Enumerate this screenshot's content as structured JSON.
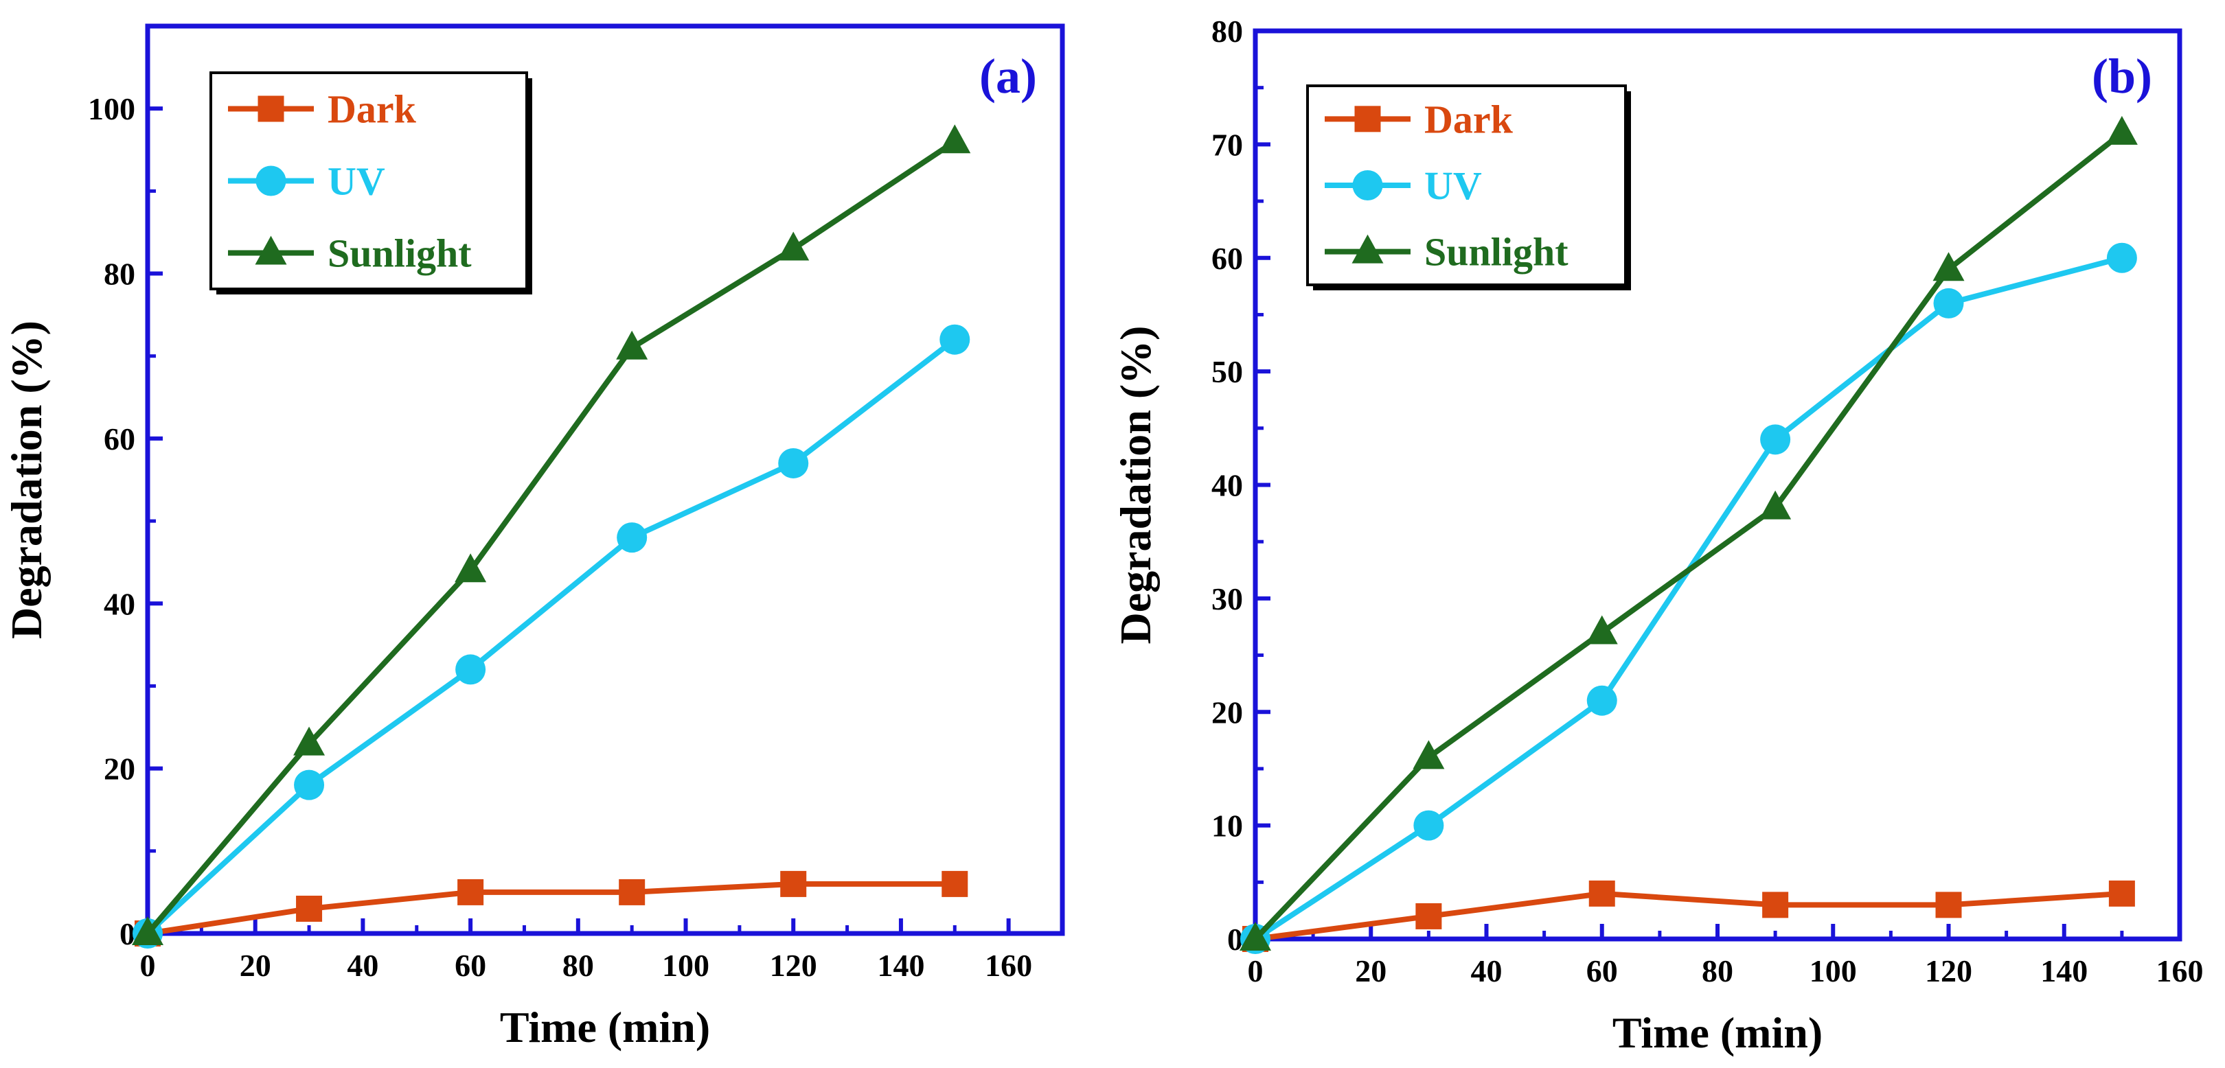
{
  "chart_data": [
    {
      "type": "line",
      "panel_label": "(a)",
      "xlabel": "Time (min)",
      "ylabel": "Degradation (%)",
      "xlim": [
        0,
        170
      ],
      "ylim": [
        0,
        110
      ],
      "xticks": [
        0,
        20,
        40,
        60,
        80,
        100,
        120,
        140,
        160
      ],
      "yticks": [
        0,
        20,
        40,
        60,
        80,
        100
      ],
      "grid": false,
      "legend_position": "top-left",
      "x": [
        0,
        30,
        60,
        90,
        120,
        150
      ],
      "series": [
        {
          "name": "Dark",
          "marker": "square",
          "color": "#d9480f",
          "values": [
            0,
            3,
            5,
            5,
            6,
            6
          ]
        },
        {
          "name": "UV",
          "marker": "circle",
          "color": "#1ec8f0",
          "values": [
            0,
            18,
            32,
            48,
            57,
            72
          ]
        },
        {
          "name": "Sunlight",
          "marker": "triangle",
          "color": "#1f6b1f",
          "values": [
            0,
            23,
            44,
            71,
            83,
            96
          ]
        }
      ]
    },
    {
      "type": "line",
      "panel_label": "(b)",
      "xlabel": "Time (min)",
      "ylabel": "Degradation (%)",
      "xlim": [
        0,
        160
      ],
      "ylim": [
        0,
        80
      ],
      "xticks": [
        0,
        20,
        40,
        60,
        80,
        100,
        120,
        140,
        160
      ],
      "yticks": [
        0,
        10,
        20,
        30,
        40,
        50,
        60,
        70,
        80
      ],
      "grid": false,
      "legend_position": "top-left",
      "x": [
        0,
        30,
        60,
        90,
        120,
        150
      ],
      "series": [
        {
          "name": "Dark",
          "marker": "square",
          "color": "#d9480f",
          "values": [
            0,
            2,
            4,
            3,
            3,
            4
          ]
        },
        {
          "name": "UV",
          "marker": "circle",
          "color": "#1ec8f0",
          "values": [
            0,
            10,
            21,
            44,
            56,
            60
          ]
        },
        {
          "name": "Sunlight",
          "marker": "triangle",
          "color": "#1f6b1f",
          "values": [
            0,
            16,
            27,
            38,
            59,
            71
          ]
        }
      ]
    }
  ],
  "colors": {
    "frame": "#1a12d9",
    "panel_label": "#1a12d9",
    "text": "#000000"
  }
}
